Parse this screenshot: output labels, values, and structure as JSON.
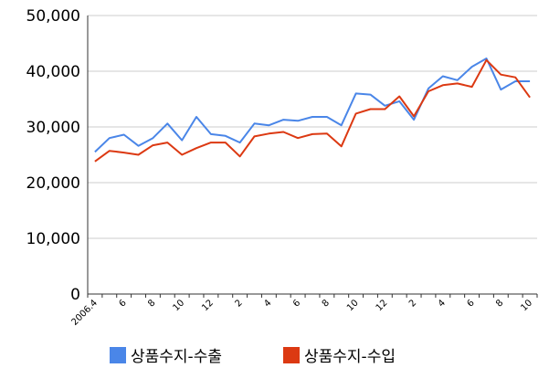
{
  "chart_data": {
    "type": "line",
    "title": "",
    "xlabel": "",
    "ylabel": "",
    "ylim": [
      0,
      50000
    ],
    "yticks": [
      "0",
      "10,000",
      "20,000",
      "30,000",
      "40,000",
      "50,000"
    ],
    "ytick_values": [
      0,
      10000,
      20000,
      30000,
      40000,
      50000
    ],
    "grid": "horizontal",
    "legend_position": "bottom",
    "x": [
      "2006.4",
      "2006.5",
      "2006.6",
      "2006.7",
      "2006.8",
      "2006.9",
      "2006.10",
      "2006.11",
      "2006.12",
      "2007.1",
      "2007.2",
      "2007.3",
      "2007.4",
      "2007.5",
      "2007.6",
      "2007.7",
      "2007.8",
      "2007.9",
      "2007.10",
      "2007.11",
      "2007.12",
      "2008.1",
      "2008.2",
      "2008.3",
      "2008.4",
      "2008.5",
      "2008.6",
      "2008.7",
      "2008.8",
      "2008.9",
      "2008.10"
    ],
    "xtick_labels": [
      "2006.4",
      "",
      "6",
      "",
      "8",
      "",
      "10",
      "",
      "12",
      "",
      "2",
      "",
      "4",
      "",
      "6",
      "",
      "8",
      "",
      "10",
      "",
      "12",
      "",
      "2",
      "",
      "4",
      "",
      "6",
      "",
      "8",
      "",
      "10"
    ],
    "series": [
      {
        "name": "상품수지-수출",
        "color": "#4a86e8",
        "values": [
          25500,
          28000,
          28600,
          26600,
          28000,
          30600,
          27600,
          31800,
          28700,
          28400,
          27200,
          30600,
          30300,
          31300,
          31100,
          31800,
          31800,
          30300,
          36000,
          35800,
          33800,
          34600,
          31300,
          36900,
          39100,
          38400,
          40800,
          42300,
          36700,
          38200,
          38200
        ]
      },
      {
        "name": "상품수지-수입",
        "color": "#dc3912",
        "values": [
          23800,
          25700,
          25400,
          25000,
          26700,
          27200,
          25000,
          26200,
          27200,
          27200,
          24700,
          28300,
          28800,
          29100,
          28000,
          28700,
          28800,
          26500,
          32400,
          33200,
          33200,
          35500,
          31900,
          36400,
          37500,
          37800,
          37200,
          42000,
          39400,
          38900,
          35300
        ]
      }
    ]
  }
}
